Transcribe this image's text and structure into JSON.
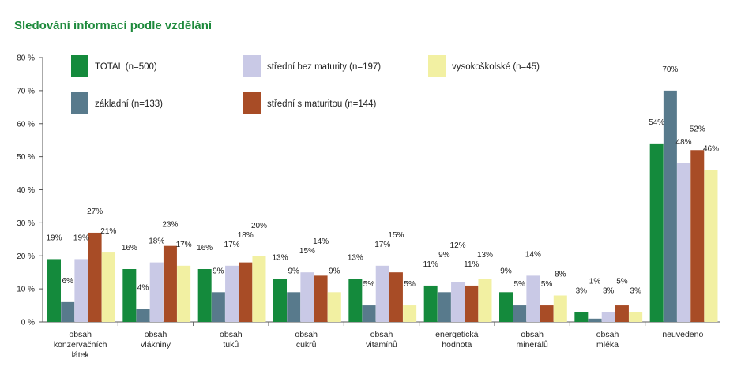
{
  "chart_data": {
    "type": "bar",
    "title": "Sledování informací podle vzdělání",
    "title_color": "#1e8a3c",
    "xlabel": "",
    "ylabel": "",
    "ylim": [
      0,
      80
    ],
    "yticks": [
      0,
      10,
      20,
      30,
      40,
      50,
      60,
      70,
      80
    ],
    "ytick_labels": [
      "0 %",
      "10 %",
      "20 %",
      "30 %",
      "40 %",
      "50 %",
      "60 %",
      "70 %",
      "80 %"
    ],
    "grid": false,
    "legend_position": "top",
    "categories": [
      [
        "obsah",
        "konzervačních",
        "látek"
      ],
      [
        "obsah",
        "vlákniny"
      ],
      [
        "obsah",
        "tuků"
      ],
      [
        "obsah",
        "cukrů"
      ],
      [
        "obsah",
        "vitamínů"
      ],
      [
        "energetická",
        "hodnota"
      ],
      [
        "obsah",
        "minerálů"
      ],
      [
        "obsah",
        "mléka"
      ],
      [
        "neuvedeno"
      ]
    ],
    "series": [
      {
        "name": "TOTAL (n=500)",
        "color": "#148a3c",
        "values": [
          19,
          16,
          16,
          13,
          13,
          11,
          9,
          3,
          54
        ],
        "labels": [
          "19%",
          "16%",
          "16%",
          "13%",
          "13%",
          "11%",
          "9%",
          "3%",
          "54%"
        ]
      },
      {
        "name": "základní (n=133)",
        "color": "#587a8c",
        "values": [
          6,
          4,
          9,
          9,
          5,
          9,
          5,
          1,
          70
        ],
        "labels": [
          "6%",
          "4%",
          "9%",
          "9%",
          "5%",
          "9%",
          "5%",
          "1%",
          "70%"
        ]
      },
      {
        "name": "střední bez maturity (n=197)",
        "color": "#c9c9e6",
        "values": [
          19,
          18,
          17,
          15,
          17,
          12,
          14,
          3,
          48
        ],
        "labels": [
          "19%",
          "18%",
          "17%",
          "15%",
          "17%",
          "12%",
          "14%",
          "3%",
          "48%"
        ]
      },
      {
        "name": "střední s maturitou (n=144)",
        "color": "#a84c26",
        "values": [
          27,
          23,
          18,
          14,
          15,
          11,
          5,
          5,
          52
        ],
        "labels": [
          "27%",
          "23%",
          "18%",
          "14%",
          "15%",
          "11%",
          "5%",
          "5%",
          "52%"
        ]
      },
      {
        "name": "vysokoškolské (n=45)",
        "color": "#f2f0a2",
        "values": [
          21,
          17,
          20,
          9,
          5,
          13,
          8,
          3,
          46
        ],
        "labels": [
          "21%",
          "17%",
          "20%",
          "9%",
          "5%",
          "13%",
          "8%",
          "3%",
          "46%"
        ]
      }
    ]
  }
}
